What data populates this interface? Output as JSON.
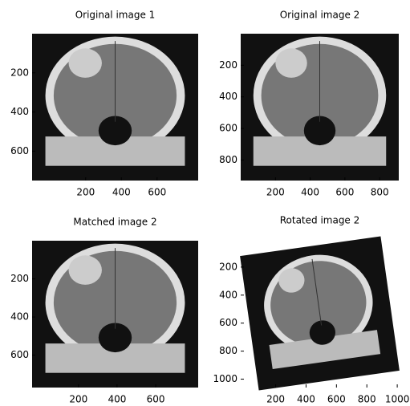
{
  "chart_data": [
    {
      "type": "image",
      "title": "Original image 1",
      "xlim": [
        -100,
        830
      ],
      "ylim": [
        0,
        750
      ],
      "xticks": [
        200,
        400,
        600
      ],
      "yticks": [
        200,
        400,
        600
      ]
    },
    {
      "type": "image",
      "title": "Original image 2",
      "xlim": [
        0,
        910
      ],
      "ylim": [
        0,
        930
      ],
      "xticks": [
        200,
        400,
        600,
        800
      ],
      "yticks": [
        200,
        400,
        600,
        800
      ]
    },
    {
      "type": "image",
      "title": "Matched image 2",
      "xlim": [
        -40,
        820
      ],
      "ylim": [
        0,
        770
      ],
      "xticks": [
        200,
        400,
        600
      ],
      "yticks": [
        200,
        400,
        600
      ]
    },
    {
      "type": "image",
      "title": "Rotated image 2",
      "xlim": [
        -30,
        1010
      ],
      "ylim": [
        0,
        1060
      ],
      "xticks": [
        200,
        400,
        600,
        800,
        1000
      ],
      "yticks": [
        200,
        400,
        600,
        800,
        1000
      ]
    }
  ]
}
